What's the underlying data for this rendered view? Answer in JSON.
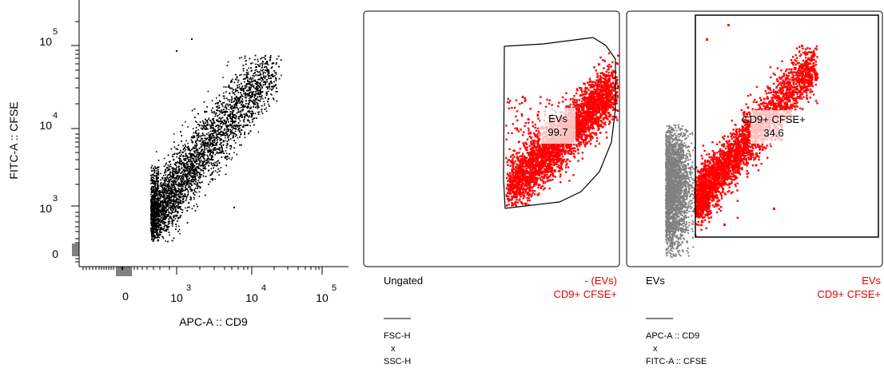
{
  "chart_data": [
    {
      "type": "scatter",
      "panel": "main",
      "xlabel": "APC-A :: CD9",
      "ylabel": "FITC-A :: CFSE",
      "x_scale": "biexponential",
      "y_scale": "biexponential",
      "x_ticks": [
        {
          "value": 0,
          "label": "0",
          "exp": ""
        },
        {
          "value": 1000,
          "label": "10",
          "exp": "3"
        },
        {
          "value": 10000,
          "label": "10",
          "exp": "4"
        },
        {
          "value": 100000,
          "label": "10",
          "exp": "5"
        }
      ],
      "y_ticks": [
        {
          "value": 0,
          "label": "0",
          "exp": ""
        },
        {
          "value": 1000,
          "label": "10",
          "exp": "3"
        },
        {
          "value": 10000,
          "label": "10",
          "exp": "4"
        },
        {
          "value": 100000,
          "label": "10",
          "exp": "5"
        }
      ],
      "point_color": "#000000",
      "grid": false
    },
    {
      "type": "scatter",
      "panel": "ungated-overlay",
      "parent_label": "Ungated",
      "legend": [
        {
          "label": "- (EVs)",
          "color": "#e00000"
        },
        {
          "label": "CD9+ CFSE+",
          "color": "#e00000"
        }
      ],
      "gate": {
        "name": "EVs",
        "percent": "99.7"
      },
      "axes_caption": {
        "x": "FSC-H",
        "sep": "x",
        "y": "SSC-H"
      },
      "series_color": "#ff0000",
      "grid": false
    },
    {
      "type": "scatter",
      "panel": "evs-overlay",
      "parent_label": "EVs",
      "legend": [
        {
          "label": "EVs",
          "color": "#e00000"
        },
        {
          "label": "CD9+ CFSE+",
          "color": "#e00000"
        }
      ],
      "gate": {
        "name": "CD9+ CFSE+",
        "percent": "34.6"
      },
      "axes_caption": {
        "x": "APC-A :: CD9",
        "sep": "x",
        "y": "FITC-A :: CFSE"
      },
      "background_color": "#808080",
      "series_color": "#ff0000",
      "grid": false
    }
  ]
}
